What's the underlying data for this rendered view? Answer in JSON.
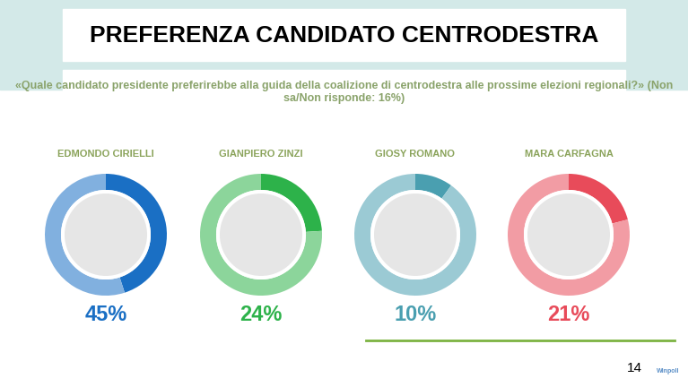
{
  "chart_data": {
    "type": "donut",
    "title": "PREFERENZA CANDIDATO CENTRODESTRA",
    "subtitle": "«Quale candidato presidente preferirebbe alla guida della coalizione di centrodestra alle prossime elezioni regionali?» (Non sa/Non risponde: 16%)",
    "categories": [
      "EDMONDO CIRIELLI",
      "GIANPIERO ZINZI",
      "GIOSY ROMANO",
      "MARA CARFAGNA"
    ],
    "values": [
      45,
      24,
      10,
      21
    ],
    "value_labels": [
      "45%",
      "24%",
      "10%",
      "21%"
    ],
    "colors": [
      "#1a6fc4",
      "#2db24a",
      "#4a9fb0",
      "#e84b5a"
    ],
    "data_labels": true,
    "page": "14",
    "source": "Winpoll"
  }
}
